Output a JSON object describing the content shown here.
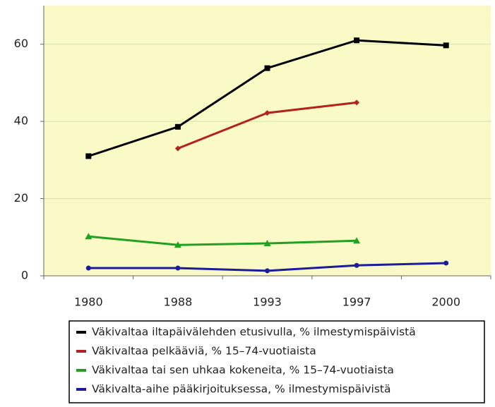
{
  "chart_data": {
    "type": "line",
    "categories": [
      "1980",
      "1988",
      "1993",
      "1997",
      "2000"
    ],
    "series": [
      {
        "name": "Väkivaltaa iltapäivälehden etusivulla, % ilmestymispäivistä",
        "color": "#000000",
        "marker": "square",
        "values": [
          31,
          38.6,
          53.8,
          61,
          59.7
        ]
      },
      {
        "name": "Väkivaltaa pelkääviä, % 15–74-vuotiaista",
        "color": "#b22222",
        "marker": "diamond",
        "values": [
          null,
          33,
          42.2,
          44.9,
          null
        ]
      },
      {
        "name": "Väkivaltaa tai sen uhkaa kokeneita, % 15–74-vuotiaista",
        "color": "#22a022",
        "marker": "triangle",
        "values": [
          10.2,
          8,
          8.4,
          9.1,
          null
        ]
      },
      {
        "name": "Väkivalta-aihe pääkirjoituksessa, % ilmestymispäivistä",
        "color": "#1c1c9c",
        "marker": "circle",
        "values": [
          2,
          2,
          1.3,
          2.7,
          3.3
        ]
      }
    ],
    "ylim": [
      0,
      70
    ],
    "yticks": [
      0,
      20,
      40,
      60
    ],
    "grid": true,
    "legend": "bottom",
    "plot_background": "#fafac6"
  }
}
